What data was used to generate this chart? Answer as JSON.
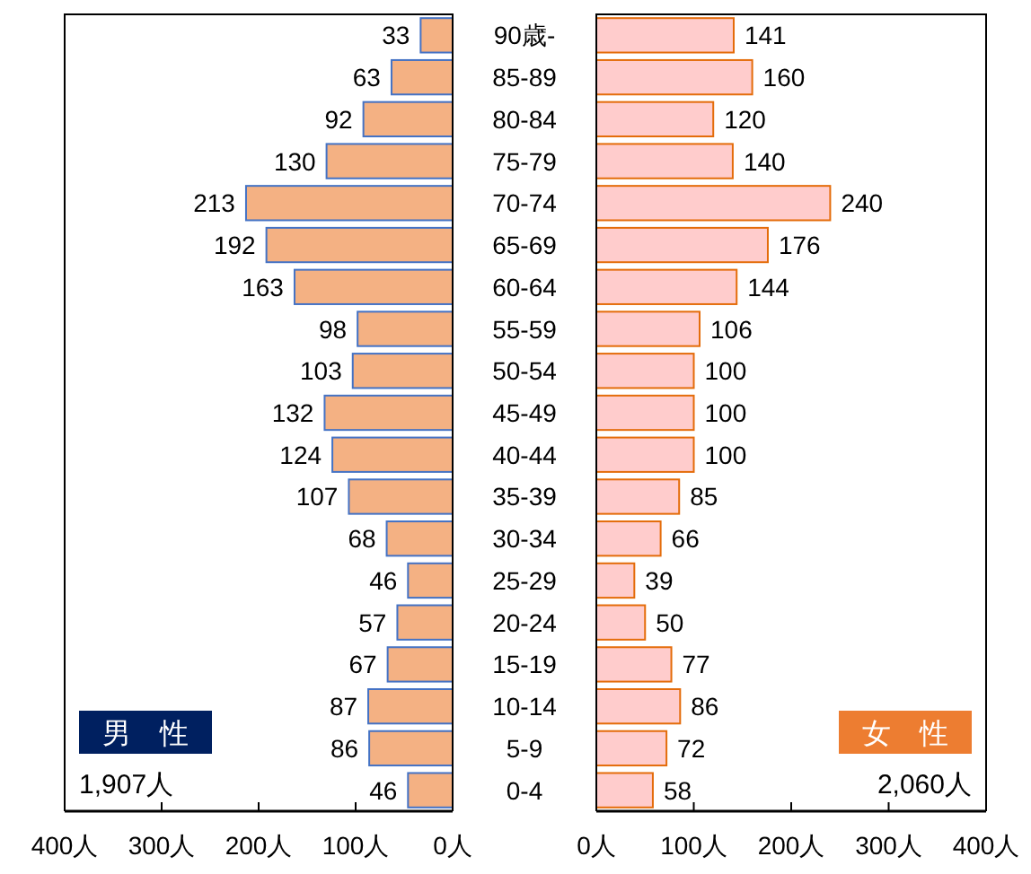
{
  "chart_data": [
    {
      "type": "bar",
      "orientation": "horizontal",
      "categories": [
        "90歳-",
        "85-89",
        "80-84",
        "75-79",
        "70-74",
        "65-69",
        "60-64",
        "55-59",
        "50-54",
        "45-49",
        "40-44",
        "35-39",
        "30-34",
        "25-29",
        "20-24",
        "15-19",
        "10-14",
        "5-9",
        "0-4"
      ],
      "values": [
        33,
        63,
        92,
        130,
        213,
        192,
        163,
        98,
        103,
        132,
        124,
        107,
        68,
        46,
        57,
        67,
        87,
        86,
        46
      ],
      "color": "#f4b183",
      "data_labels": true,
      "xlim": [
        400,
        0
      ],
      "xticks": [
        {
          "value": 400,
          "label": "400人"
        },
        {
          "value": 300,
          "label": "300人"
        },
        {
          "value": 200,
          "label": "200人"
        },
        {
          "value": 100,
          "label": "100人"
        },
        {
          "value": 0,
          "label": "0人"
        }
      ],
      "annotations": [
        "男　性",
        "1,907人"
      ]
    },
    {
      "type": "bar",
      "orientation": "horizontal",
      "categories": [
        "90歳-",
        "85-89",
        "80-84",
        "75-79",
        "70-74",
        "65-69",
        "60-64",
        "55-59",
        "50-54",
        "45-49",
        "40-44",
        "35-39",
        "30-34",
        "25-29",
        "20-24",
        "15-19",
        "10-14",
        "5-9",
        "0-4"
      ],
      "values": [
        141,
        160,
        120,
        140,
        240,
        176,
        144,
        106,
        100,
        100,
        100,
        85,
        66,
        39,
        50,
        77,
        86,
        72,
        58
      ],
      "color": "#ffcccc",
      "data_labels": true,
      "tick_labels": "x",
      "xlim": [
        0,
        400
      ],
      "xticks": [
        {
          "value": 0,
          "label": "0人"
        },
        {
          "value": 100,
          "label": "100人"
        },
        {
          "value": 200,
          "label": "200人"
        },
        {
          "value": 300,
          "label": "300人"
        },
        {
          "value": 400,
          "label": "400人"
        }
      ],
      "annotations": [
        "女　性",
        "2,060人"
      ]
    }
  ]
}
